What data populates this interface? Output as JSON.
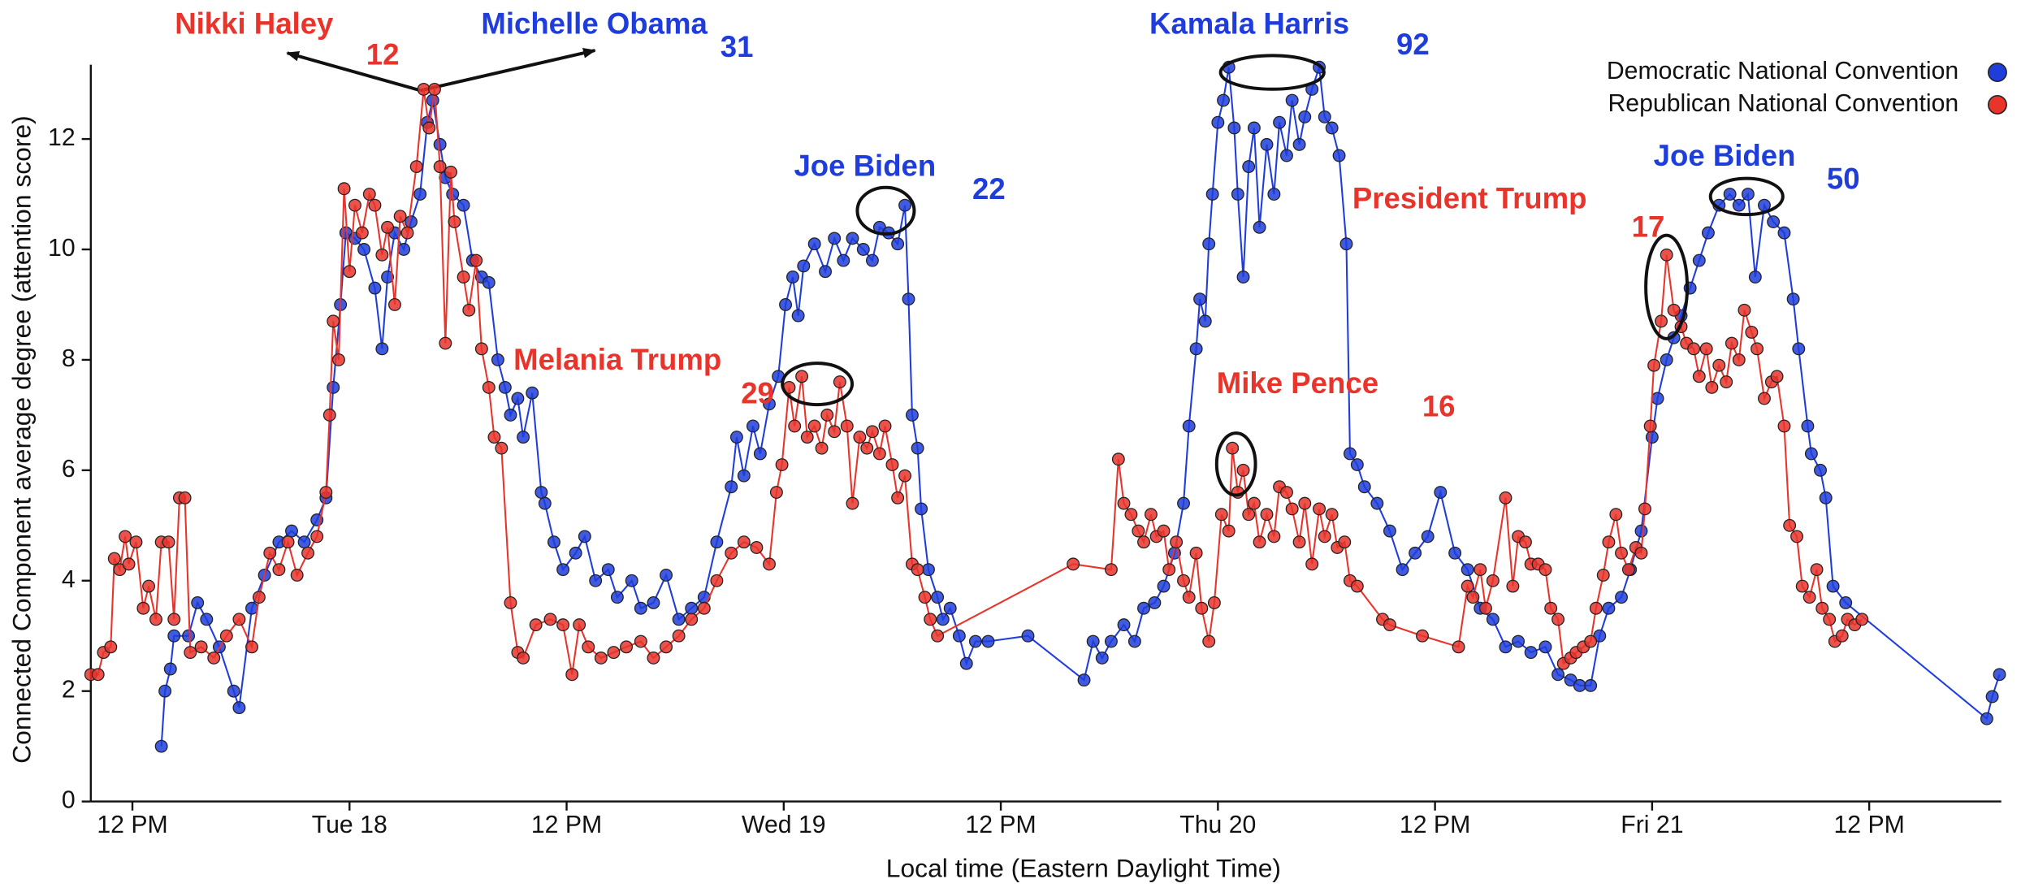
{
  "chart_data": {
    "type": "line",
    "x_label": "Local time (Eastern Daylight Time)",
    "y_label": "Connected Component average degree (attention score)",
    "xlim": [
      9.7,
      115.3
    ],
    "xticks": [
      {
        "value": 12,
        "label": "12 PM"
      },
      {
        "value": 24,
        "label": "Tue 18"
      },
      {
        "value": 36,
        "label": "12 PM"
      },
      {
        "value": 48,
        "label": "Wed 19"
      },
      {
        "value": 60,
        "label": "12 PM"
      },
      {
        "value": 72,
        "label": "Thu 20"
      },
      {
        "value": 84,
        "label": "12 PM"
      },
      {
        "value": 96,
        "label": "Fri 21"
      },
      {
        "value": 108,
        "label": "12 PM"
      }
    ],
    "ylim": [
      0,
      13.3
    ],
    "yticks": [
      0,
      2,
      4,
      6,
      8,
      10,
      12
    ],
    "grid": false,
    "markers": true,
    "legend": "top right",
    "series": [
      {
        "name": "Democratic National Convention",
        "color": "#1f3ddb",
        "x": [
          13.6,
          13.8,
          14.1,
          14.3,
          15.1,
          15.6,
          16.1,
          16.8,
          17.6,
          17.9,
          18.6,
          19.3,
          20.1,
          20.8,
          21.5,
          22.2,
          22.7,
          23.1,
          23.5,
          23.8,
          24.3,
          24.8,
          25.4,
          25.8,
          26.1,
          26.5,
          27.0,
          27.4,
          27.9,
          28.3,
          28.6,
          29.0,
          29.3,
          29.7,
          30.3,
          30.8,
          31.3,
          31.7,
          32.2,
          32.6,
          32.9,
          33.3,
          33.6,
          34.1,
          34.6,
          34.8,
          35.3,
          35.8,
          36.5,
          37.0,
          37.6,
          38.3,
          38.8,
          39.6,
          40.1,
          40.8,
          41.5,
          42.2,
          42.9,
          43.6,
          44.3,
          45.1,
          45.4,
          45.8,
          46.3,
          46.7,
          47.2,
          47.7,
          48.1,
          48.5,
          48.8,
          49.1,
          49.7,
          50.3,
          50.8,
          51.3,
          51.8,
          52.4,
          52.9,
          53.3,
          53.8,
          54.3,
          54.7,
          54.9,
          55.1,
          55.4,
          55.6,
          56.0,
          56.5,
          56.8,
          57.2,
          57.7,
          58.1,
          58.6,
          59.3,
          61.5,
          64.6,
          65.1,
          65.6,
          66.1,
          66.8,
          67.4,
          67.9,
          68.5,
          69.0,
          69.6,
          70.1,
          70.4,
          70.8,
          71.0,
          71.3,
          71.5,
          71.7,
          72.0,
          72.3,
          72.6,
          72.9,
          73.1,
          73.4,
          73.7,
          74.0,
          74.3,
          74.7,
          75.1,
          75.4,
          75.8,
          76.1,
          76.5,
          76.8,
          77.2,
          77.6,
          77.9,
          78.3,
          78.7,
          79.1,
          79.3,
          79.7,
          80.1,
          80.8,
          81.5,
          82.2,
          82.9,
          83.6,
          84.3,
          85.1,
          85.8,
          86.5,
          87.2,
          87.9,
          88.6,
          89.3,
          90.1,
          90.8,
          91.5,
          92.0,
          92.6,
          93.1,
          93.6,
          94.3,
          94.8,
          95.4,
          96.0,
          96.3,
          96.8,
          97.2,
          97.6,
          98.1,
          98.6,
          99.1,
          99.7,
          100.3,
          100.8,
          101.3,
          101.7,
          102.2,
          102.7,
          103.3,
          103.8,
          104.1,
          104.6,
          104.8,
          105.3,
          105.6,
          106.0,
          106.7,
          114.5,
          114.8,
          115.2
        ],
        "values": [
          1.0,
          2.0,
          2.4,
          3.0,
          3.0,
          3.6,
          3.3,
          2.8,
          2.0,
          1.7,
          3.5,
          4.1,
          4.7,
          4.9,
          4.7,
          5.1,
          5.5,
          7.5,
          9.0,
          10.3,
          10.2,
          10.0,
          9.3,
          8.2,
          9.5,
          10.3,
          10.0,
          10.5,
          11.0,
          12.3,
          12.7,
          11.9,
          11.3,
          11.0,
          10.8,
          9.8,
          9.5,
          9.4,
          8.0,
          7.5,
          7.0,
          7.3,
          6.6,
          7.4,
          5.6,
          5.4,
          4.7,
          4.2,
          4.5,
          4.8,
          4.0,
          4.2,
          3.7,
          4.0,
          3.5,
          3.6,
          4.1,
          3.3,
          3.5,
          3.7,
          4.7,
          5.7,
          6.6,
          5.9,
          6.8,
          6.3,
          7.2,
          7.7,
          9.0,
          9.5,
          8.8,
          9.7,
          10.1,
          9.6,
          10.2,
          9.8,
          10.2,
          10.0,
          9.8,
          10.4,
          10.3,
          10.1,
          10.8,
          9.1,
          7.0,
          6.4,
          5.3,
          4.2,
          3.7,
          3.3,
          3.5,
          3.0,
          2.5,
          2.9,
          2.9,
          3.0,
          2.2,
          2.9,
          2.6,
          2.9,
          3.2,
          2.9,
          3.5,
          3.6,
          3.9,
          4.5,
          5.4,
          6.8,
          8.2,
          9.1,
          8.7,
          10.1,
          11.0,
          12.3,
          12.7,
          13.3,
          12.2,
          11.0,
          9.5,
          11.5,
          12.2,
          10.4,
          11.9,
          11.0,
          12.3,
          11.7,
          12.7,
          11.9,
          12.4,
          12.9,
          13.3,
          12.4,
          12.2,
          11.7,
          10.1,
          6.3,
          6.1,
          5.7,
          5.4,
          4.9,
          4.2,
          4.5,
          4.8,
          5.6,
          4.5,
          4.2,
          3.5,
          3.3,
          2.8,
          2.9,
          2.7,
          2.8,
          2.3,
          2.2,
          2.1,
          2.1,
          3.0,
          3.5,
          3.7,
          4.2,
          4.9,
          6.6,
          7.3,
          8.0,
          8.4,
          8.8,
          9.3,
          9.8,
          10.3,
          10.8,
          11.0,
          10.8,
          11.0,
          9.5,
          10.8,
          10.5,
          10.3,
          9.1,
          8.2,
          6.8,
          6.3,
          6.0,
          5.5,
          3.9,
          3.6,
          1.5,
          1.9,
          2.3
        ]
      },
      {
        "name": "Republican National Convention",
        "color": "#e8342b",
        "x": [
          9.7,
          10.1,
          10.4,
          10.8,
          11.0,
          11.3,
          11.6,
          11.8,
          12.2,
          12.6,
          12.9,
          13.3,
          13.6,
          14.0,
          14.3,
          14.6,
          14.9,
          15.2,
          15.8,
          16.5,
          17.2,
          17.9,
          18.6,
          19.0,
          19.6,
          20.1,
          20.6,
          21.1,
          21.7,
          22.2,
          22.7,
          22.9,
          23.1,
          23.4,
          23.7,
          24.0,
          24.3,
          24.7,
          25.1,
          25.4,
          25.8,
          26.1,
          26.5,
          26.8,
          27.2,
          27.7,
          28.1,
          28.4,
          28.7,
          29.0,
          29.3,
          29.6,
          29.8,
          30.3,
          30.6,
          31.0,
          31.3,
          31.7,
          32.0,
          32.4,
          32.9,
          33.3,
          33.6,
          34.3,
          35.1,
          35.8,
          36.3,
          36.7,
          37.2,
          37.9,
          38.6,
          39.3,
          40.1,
          40.8,
          41.5,
          42.2,
          42.9,
          43.6,
          44.3,
          45.1,
          45.8,
          46.5,
          47.2,
          47.6,
          47.9,
          48.3,
          48.6,
          49.0,
          49.3,
          49.7,
          50.1,
          50.4,
          50.8,
          51.1,
          51.5,
          51.8,
          52.2,
          52.6,
          52.9,
          53.3,
          53.6,
          54.0,
          54.3,
          54.7,
          55.1,
          55.4,
          55.8,
          56.1,
          56.5,
          64.0,
          66.1,
          66.5,
          66.8,
          67.2,
          67.6,
          67.9,
          68.3,
          68.6,
          69.0,
          69.3,
          69.7,
          70.1,
          70.4,
          70.8,
          71.1,
          71.5,
          71.8,
          72.2,
          72.6,
          72.8,
          73.1,
          73.4,
          73.7,
          74.0,
          74.3,
          74.7,
          75.1,
          75.4,
          75.8,
          76.1,
          76.5,
          76.8,
          77.2,
          77.6,
          77.9,
          78.3,
          78.6,
          79.0,
          79.3,
          79.7,
          81.1,
          81.5,
          83.3,
          85.3,
          85.8,
          86.1,
          86.5,
          86.8,
          87.2,
          87.9,
          88.3,
          88.6,
          89.0,
          89.3,
          89.7,
          90.1,
          90.4,
          90.8,
          91.1,
          91.5,
          91.8,
          92.2,
          92.6,
          92.9,
          93.3,
          93.6,
          94.0,
          94.3,
          94.7,
          95.1,
          95.4,
          95.6,
          95.9,
          96.1,
          96.5,
          96.8,
          97.2,
          97.6,
          97.9,
          98.3,
          98.6,
          99.0,
          99.3,
          99.7,
          100.1,
          100.4,
          100.8,
          101.1,
          101.5,
          101.8,
          102.2,
          102.6,
          102.9,
          103.3,
          103.6,
          104.0,
          104.3,
          104.7,
          105.1,
          105.4,
          105.8,
          106.1,
          106.5,
          106.8,
          107.2,
          107.6
        ],
        "values": [
          2.3,
          2.3,
          2.7,
          2.8,
          4.4,
          4.2,
          4.8,
          4.3,
          4.7,
          3.5,
          3.9,
          3.3,
          4.7,
          4.7,
          3.3,
          5.5,
          5.5,
          2.7,
          2.8,
          2.6,
          3.0,
          3.3,
          2.8,
          3.7,
          4.5,
          4.2,
          4.7,
          4.1,
          4.5,
          4.8,
          5.6,
          7.0,
          8.7,
          8.0,
          11.1,
          9.6,
          10.8,
          10.3,
          11.0,
          10.8,
          9.9,
          10.4,
          9.0,
          10.6,
          10.3,
          11.5,
          12.9,
          12.2,
          12.9,
          11.5,
          8.3,
          11.4,
          10.5,
          9.5,
          8.9,
          9.8,
          8.2,
          7.5,
          6.6,
          6.4,
          3.6,
          2.7,
          2.6,
          3.2,
          3.3,
          3.2,
          2.3,
          3.2,
          2.8,
          2.6,
          2.7,
          2.8,
          2.9,
          2.6,
          2.8,
          3.0,
          3.3,
          3.5,
          4.0,
          4.5,
          4.7,
          4.6,
          4.3,
          5.6,
          6.1,
          7.5,
          6.8,
          7.7,
          6.6,
          6.8,
          6.4,
          7.0,
          6.7,
          7.6,
          6.8,
          5.4,
          6.6,
          6.4,
          6.7,
          6.3,
          6.8,
          6.1,
          5.5,
          5.9,
          4.3,
          4.2,
          3.7,
          3.3,
          3.0,
          4.3,
          4.2,
          6.2,
          5.4,
          5.2,
          4.9,
          4.7,
          5.2,
          4.8,
          4.9,
          4.2,
          4.7,
          4.0,
          3.7,
          4.5,
          3.5,
          2.9,
          3.6,
          5.2,
          4.9,
          6.4,
          5.6,
          6.0,
          5.2,
          5.4,
          4.7,
          5.2,
          4.8,
          5.7,
          5.6,
          5.3,
          4.7,
          5.4,
          4.3,
          5.3,
          4.8,
          5.2,
          4.6,
          4.7,
          4.0,
          3.9,
          3.3,
          3.2,
          3.0,
          2.8,
          3.9,
          3.7,
          4.2,
          3.5,
          4.0,
          5.5,
          3.9,
          4.8,
          4.7,
          4.3,
          4.3,
          4.2,
          3.5,
          3.3,
          2.5,
          2.6,
          2.7,
          2.8,
          2.9,
          3.5,
          4.1,
          4.7,
          5.2,
          4.5,
          4.2,
          4.6,
          4.5,
          5.3,
          6.8,
          7.9,
          8.7,
          9.9,
          8.9,
          8.6,
          8.3,
          8.2,
          7.7,
          8.2,
          7.5,
          7.9,
          7.6,
          8.3,
          8.0,
          8.9,
          8.5,
          8.2,
          7.3,
          7.6,
          7.7,
          6.8,
          5.0,
          4.8,
          3.9,
          3.7,
          4.2,
          3.5,
          3.3,
          2.9,
          3.0,
          3.3,
          3.2,
          3.3
        ]
      }
    ],
    "annotations": [
      {
        "text": "Nikki Haley",
        "number": 12,
        "color": "#e8342b"
      },
      {
        "text": "Michelle Obama",
        "number": 31,
        "color": "#1f3ddb"
      },
      {
        "text": "Joe Biden",
        "number": 22,
        "color": "#1f3ddb"
      },
      {
        "text": "Melania Trump",
        "number": 29,
        "color": "#e8342b"
      },
      {
        "text": "Kamala Harris",
        "number": 92,
        "color": "#1f3ddb"
      },
      {
        "text": "Mike Pence",
        "number": 16,
        "color": "#e8342b"
      },
      {
        "text": "President Trump",
        "number": 17,
        "color": "#e8342b"
      },
      {
        "text": "Joe Biden",
        "number": 50,
        "color": "#1f3ddb"
      }
    ]
  }
}
